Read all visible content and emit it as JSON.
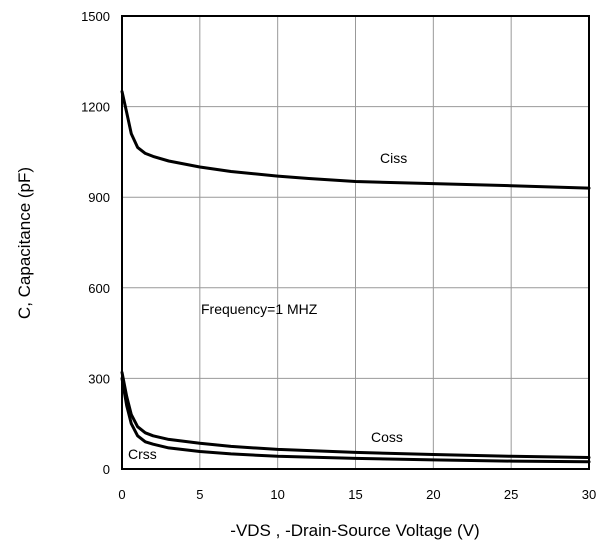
{
  "chart_data": {
    "type": "line",
    "title": "",
    "xlabel": "-VDS , -Drain-Source Voltage (V)",
    "ylabel": "C, Capacitance (pF)",
    "xlim": [
      0,
      30
    ],
    "ylim": [
      0,
      1500
    ],
    "xticks": [
      0,
      5,
      10,
      15,
      20,
      25,
      30
    ],
    "yticks": [
      0,
      300,
      600,
      900,
      1200,
      1500
    ],
    "grid": true,
    "annotation": "Frequency=1 MHZ",
    "colors": {
      "line": "#000000",
      "grid": "#999999",
      "axis": "#000000",
      "background": "#ffffff"
    },
    "series": [
      {
        "name": "Ciss",
        "x": [
          0,
          0.3,
          0.6,
          1.0,
          1.5,
          2,
          3,
          5,
          7,
          10,
          12,
          15,
          20,
          25,
          30
        ],
        "values": [
          1250,
          1180,
          1110,
          1065,
          1045,
          1035,
          1020,
          1000,
          985,
          970,
          962,
          952,
          945,
          938,
          930
        ]
      },
      {
        "name": "Coss",
        "x": [
          0,
          0.3,
          0.6,
          1.0,
          1.5,
          2,
          3,
          5,
          7,
          10,
          15,
          20,
          25,
          30
        ],
        "values": [
          320,
          240,
          180,
          140,
          120,
          110,
          98,
          85,
          75,
          65,
          55,
          48,
          42,
          38
        ]
      },
      {
        "name": "Crss",
        "x": [
          0,
          0.3,
          0.6,
          1.0,
          1.5,
          2,
          3,
          5,
          7,
          10,
          15,
          20,
          25,
          30
        ],
        "values": [
          300,
          210,
          150,
          110,
          90,
          82,
          70,
          58,
          50,
          42,
          35,
          30,
          26,
          24
        ]
      }
    ]
  }
}
